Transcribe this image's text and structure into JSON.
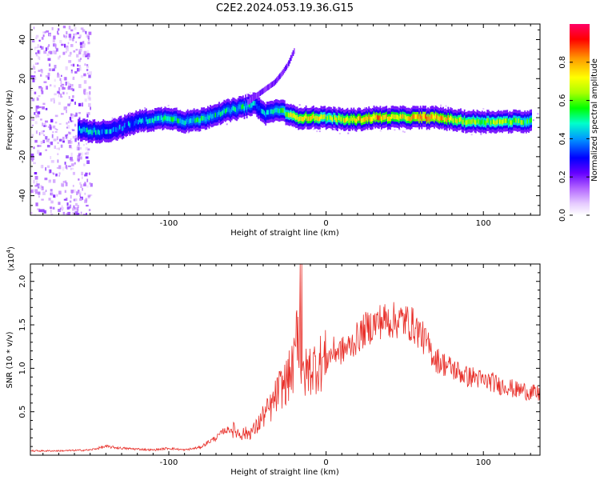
{
  "figure": {
    "title": "C2E2.2024.053.19.36.G15"
  },
  "chart_data": [
    {
      "type": "heatmap",
      "xlabel": "Height of straight line (km)",
      "ylabel": "Frequency (Hz)",
      "xlim": [
        -188,
        136
      ],
      "ylim": [
        -50,
        48
      ],
      "xticks": [
        -100,
        0,
        100
      ],
      "xtick_labels": [
        "-100",
        "0",
        "100"
      ],
      "yticks": [
        -40,
        -20,
        0,
        20,
        40
      ],
      "ytick_labels": [
        "-40",
        "-20",
        "0",
        "20",
        "40"
      ],
      "colorbar": {
        "label": "Normalized spectral amplitude",
        "range": [
          0,
          1
        ],
        "ticks": [
          0.0,
          0.2,
          0.4,
          0.6,
          0.8
        ],
        "tick_labels": [
          "0.0",
          "0.2",
          "0.4",
          "0.6",
          "0.8"
        ],
        "colors": [
          "#ffffff",
          "#e6ccff",
          "#b366ff",
          "#6600ff",
          "#0000ff",
          "#0099ff",
          "#00ffcc",
          "#00ff00",
          "#aaff00",
          "#ffff00",
          "#ff9900",
          "#ff0000",
          "#ff0066"
        ]
      },
      "ridge": {
        "x": [
          -158,
          -150,
          -140,
          -130,
          -120,
          -110,
          -100,
          -90,
          -80,
          -70,
          -60,
          -50,
          -45,
          -40,
          -35,
          -30,
          -20,
          -10,
          0,
          10,
          20,
          30,
          40,
          50,
          60,
          70,
          80,
          90,
          100,
          110,
          120,
          130
        ],
        "y": [
          -6,
          -7,
          -7,
          -5,
          -2,
          -1,
          0,
          -2,
          -1,
          2,
          4,
          6,
          7,
          2,
          3,
          4,
          0,
          0,
          0,
          -1,
          -1,
          0,
          0,
          0,
          0,
          0,
          -1,
          -2,
          -2,
          -2,
          -2,
          -2
        ],
        "amplitude": [
          0.4,
          0.45,
          0.4,
          0.35,
          0.4,
          0.45,
          0.5,
          0.45,
          0.5,
          0.45,
          0.45,
          0.5,
          0.4,
          0.4,
          0.45,
          0.5,
          0.7,
          0.75,
          0.6,
          0.7,
          0.75,
          0.8,
          0.75,
          0.7,
          0.85,
          0.8,
          0.7,
          0.65,
          0.6,
          0.65,
          0.6,
          0.55
        ]
      },
      "side_branch": {
        "x": [
          -50,
          -40,
          -33,
          -28,
          -24,
          -22,
          -20
        ],
        "y": [
          8,
          14,
          18,
          23,
          28,
          32,
          35
        ]
      },
      "noise_band": {
        "x": [
          -188,
          -150
        ],
        "y": [
          -50,
          48
        ],
        "amplitude": 0.1
      }
    },
    {
      "type": "line",
      "xlabel": "Height of straight line (km)",
      "ylabel": "SNR (10 * v/v)",
      "yunit_label": "(x10",
      "yunit_exponent": "4",
      "yunit_close": ")",
      "xlim": [
        -188,
        136
      ],
      "ylim": [
        0,
        2.2
      ],
      "xticks": [
        -100,
        0,
        100
      ],
      "xtick_labels": [
        "-100",
        "0",
        "100"
      ],
      "yticks": [
        0.5,
        1.0,
        1.5,
        2.0
      ],
      "ytick_labels": [
        "0.5",
        "1.0",
        "1.5",
        "2.0"
      ],
      "color": "#e8302a",
      "envelope": {
        "x": [
          -188,
          -170,
          -150,
          -140,
          -130,
          -110,
          -100,
          -90,
          -80,
          -75,
          -70,
          -65,
          -60,
          -55,
          -50,
          -45,
          -40,
          -35,
          -30,
          -25,
          -20,
          -18,
          -15,
          -10,
          -5,
          0,
          5,
          10,
          15,
          20,
          25,
          30,
          35,
          40,
          45,
          50,
          55,
          60,
          65,
          70,
          75,
          80,
          85,
          90,
          95,
          100,
          105,
          110,
          115,
          120,
          125,
          130,
          136
        ],
        "y": [
          0.05,
          0.05,
          0.06,
          0.1,
          0.08,
          0.06,
          0.08,
          0.06,
          0.09,
          0.15,
          0.2,
          0.28,
          0.3,
          0.25,
          0.25,
          0.3,
          0.45,
          0.55,
          0.75,
          0.85,
          1.05,
          1.6,
          0.9,
          1.0,
          1.05,
          1.1,
          1.2,
          1.2,
          1.25,
          1.35,
          1.45,
          1.5,
          1.55,
          1.55,
          1.55,
          1.55,
          1.5,
          1.4,
          1.25,
          1.1,
          1.05,
          1.0,
          0.95,
          0.9,
          0.9,
          0.85,
          0.85,
          0.8,
          0.8,
          0.75,
          0.75,
          0.72,
          0.7
        ]
      }
    }
  ]
}
